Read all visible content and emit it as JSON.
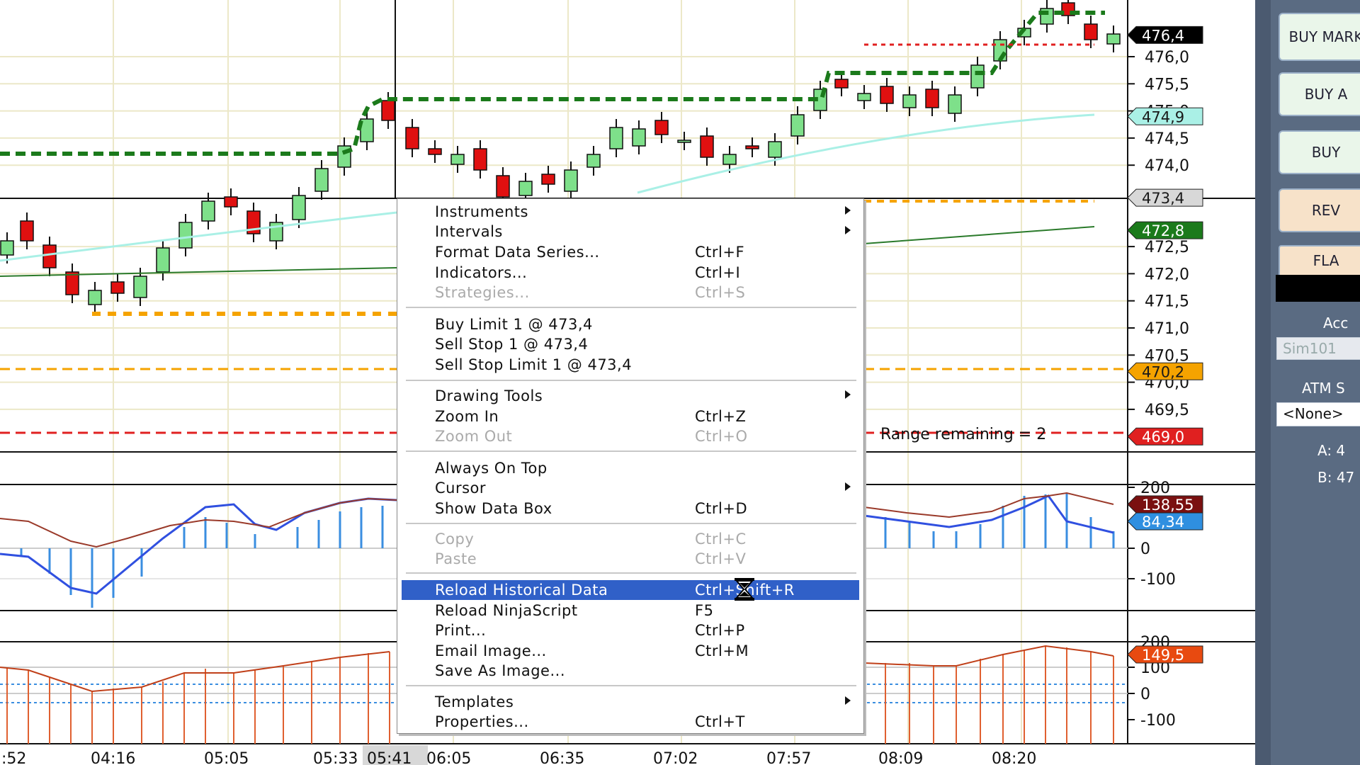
{
  "colors": {
    "up": "#7ee08a",
    "down": "#e01010",
    "stop_green": "#1b7a1b",
    "orange": "#f5a300",
    "red": "#e02020",
    "ema": "#aaf0e6",
    "sma": "#2a7a2a",
    "menu_highlight": "#3060c8"
  },
  "price_axis": {
    "labels": [
      "476,0",
      "475,5",
      "475,0",
      "474,5",
      "474,0",
      "472,5",
      "472,0",
      "471,5",
      "471,0",
      "470,5",
      "470,0",
      "469,5"
    ],
    "ticks": [
      476.0,
      475.5,
      475.0,
      474.5,
      474.0,
      472.5,
      472.0,
      471.5,
      471.0,
      470.5,
      470.0,
      469.5
    ]
  },
  "price_tags": [
    {
      "text": "476,4",
      "price": 476.4,
      "bg": "#000000",
      "fg": "#ffffff"
    },
    {
      "text": "474,9",
      "price": 474.9,
      "bg": "#aaf0e6",
      "fg": "#1a1a1a"
    },
    {
      "text": "473,4",
      "price": 473.4,
      "bg": "#d8d8d8",
      "fg": "#1a1a1a"
    },
    {
      "text": "472,8",
      "price": 472.8,
      "bg": "#1b7a1b",
      "fg": "#ffffff"
    },
    {
      "text": "470,2",
      "price": 470.2,
      "bg": "#f5a300",
      "fg": "#1a1a1a"
    },
    {
      "text": "469,0",
      "price": 469.0,
      "bg": "#e02020",
      "fg": "#ffffff"
    }
  ],
  "range_text": "Range remaining = 2",
  "ind1": {
    "labels": [
      "200",
      "0",
      "-100"
    ],
    "tags": [
      {
        "text": "138,55",
        "bg": "#7a1010",
        "fg": "#ffffff"
      },
      {
        "text": "84,34",
        "bg": "#2f8fe0",
        "fg": "#ffffff"
      }
    ]
  },
  "ind2": {
    "labels": [
      "200",
      "100",
      "0",
      "-100"
    ],
    "tags": [
      {
        "text": "149,5",
        "bg": "#e84a10",
        "fg": "#ffffff"
      }
    ]
  },
  "time_axis": {
    "labels": [
      ":52",
      "04:16",
      "05:05",
      "05:33",
      "05:41",
      "06:05",
      "06:35",
      "07:02",
      "07:57",
      "08:09",
      "08:20"
    ]
  },
  "menu": {
    "items": [
      {
        "label": "Instruments",
        "shortcut": "",
        "submenu": true,
        "disabled": false
      },
      {
        "label": "Intervals",
        "shortcut": "",
        "submenu": true,
        "disabled": false
      },
      {
        "label": "Format Data Series...",
        "shortcut": "Ctrl+F",
        "submenu": false,
        "disabled": false
      },
      {
        "label": "Indicators...",
        "shortcut": "Ctrl+I",
        "submenu": false,
        "disabled": false
      },
      {
        "label": "Strategies...",
        "shortcut": "Ctrl+S",
        "submenu": false,
        "disabled": true
      },
      {
        "label": "Buy Limit 1 @ 473,4",
        "shortcut": "",
        "submenu": false,
        "disabled": false
      },
      {
        "label": "Sell Stop 1 @ 473,4",
        "shortcut": "",
        "submenu": false,
        "disabled": false
      },
      {
        "label": "Sell Stop Limit 1 @ 473,4",
        "shortcut": "",
        "submenu": false,
        "disabled": false
      },
      {
        "label": "Drawing Tools",
        "shortcut": "",
        "submenu": true,
        "disabled": false
      },
      {
        "label": "Zoom In",
        "shortcut": "Ctrl+Z",
        "submenu": false,
        "disabled": false
      },
      {
        "label": "Zoom Out",
        "shortcut": "Ctrl+O",
        "submenu": false,
        "disabled": true
      },
      {
        "label": "Always On Top",
        "shortcut": "",
        "submenu": false,
        "disabled": false
      },
      {
        "label": "Cursor",
        "shortcut": "",
        "submenu": true,
        "disabled": false
      },
      {
        "label": "Show Data Box",
        "shortcut": "Ctrl+D",
        "submenu": false,
        "disabled": false
      },
      {
        "label": "Copy",
        "shortcut": "Ctrl+C",
        "submenu": false,
        "disabled": true
      },
      {
        "label": "Paste",
        "shortcut": "Ctrl+V",
        "submenu": false,
        "disabled": true
      },
      {
        "label": "Reload Historical Data",
        "shortcut": "Ctrl+Shift+R",
        "submenu": false,
        "disabled": false,
        "highlighted": true
      },
      {
        "label": "Reload NinjaScript",
        "shortcut": "F5",
        "submenu": false,
        "disabled": false
      },
      {
        "label": "Print...",
        "shortcut": "Ctrl+P",
        "submenu": false,
        "disabled": false
      },
      {
        "label": "Email Image...",
        "shortcut": "Ctrl+M",
        "submenu": false,
        "disabled": false
      },
      {
        "label": "Save As Image...",
        "shortcut": "",
        "submenu": false,
        "disabled": false
      },
      {
        "label": "Templates",
        "shortcut": "",
        "submenu": true,
        "disabled": false
      },
      {
        "label": "Properties...",
        "shortcut": "Ctrl+T",
        "submenu": false,
        "disabled": false
      }
    ]
  },
  "side_panel": {
    "buy_market": "BUY MARK",
    "buy_ask": "BUY A",
    "buy": "BUY",
    "rev": "REV",
    "flat": "FLA",
    "account_label": "Acc",
    "account_value": "Sim101",
    "atm_label": "ATM S",
    "atm_value": "<None>",
    "ask_label": "A: 4",
    "bid_label": "B: 47"
  }
}
